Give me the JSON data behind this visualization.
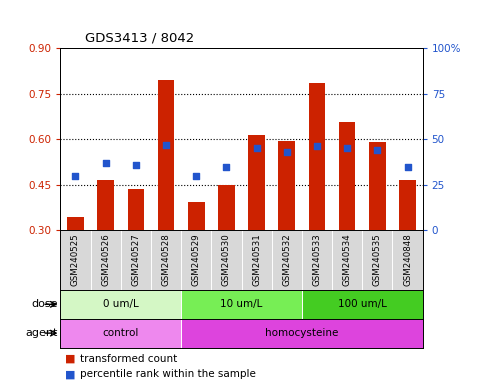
{
  "title": "GDS3413 / 8042",
  "samples": [
    "GSM240525",
    "GSM240526",
    "GSM240527",
    "GSM240528",
    "GSM240529",
    "GSM240530",
    "GSM240531",
    "GSM240532",
    "GSM240533",
    "GSM240534",
    "GSM240535",
    "GSM240848"
  ],
  "red_values": [
    0.345,
    0.465,
    0.435,
    0.795,
    0.395,
    0.45,
    0.615,
    0.595,
    0.785,
    0.655,
    0.59,
    0.465
  ],
  "blue_values": [
    30,
    37,
    36,
    47,
    30,
    35,
    45,
    43,
    46,
    45,
    44,
    35
  ],
  "ylim_left": [
    0.3,
    0.9
  ],
  "ylim_right": [
    0,
    100
  ],
  "yticks_left": [
    0.3,
    0.45,
    0.6,
    0.75,
    0.9
  ],
  "yticks_right": [
    0,
    25,
    50,
    75,
    100
  ],
  "dose_groups": [
    {
      "label": "0 um/L",
      "start": 0,
      "end": 4,
      "color": "#d4f7c5"
    },
    {
      "label": "10 um/L",
      "start": 4,
      "end": 8,
      "color": "#77ee55"
    },
    {
      "label": "100 um/L",
      "start": 8,
      "end": 12,
      "color": "#44cc22"
    }
  ],
  "agent_groups": [
    {
      "label": "control",
      "start": 0,
      "end": 4,
      "color": "#ee88ee"
    },
    {
      "label": "homocysteine",
      "start": 4,
      "end": 12,
      "color": "#dd44dd"
    }
  ],
  "bar_color": "#cc2200",
  "dot_color": "#2255cc",
  "bar_width": 0.55,
  "axis_color_left": "#cc2200",
  "axis_color_right": "#2255cc",
  "bg_color": "#ffffff",
  "label_area_color": "#d8d8d8",
  "grid_yticks": [
    0.45,
    0.6,
    0.75
  ]
}
